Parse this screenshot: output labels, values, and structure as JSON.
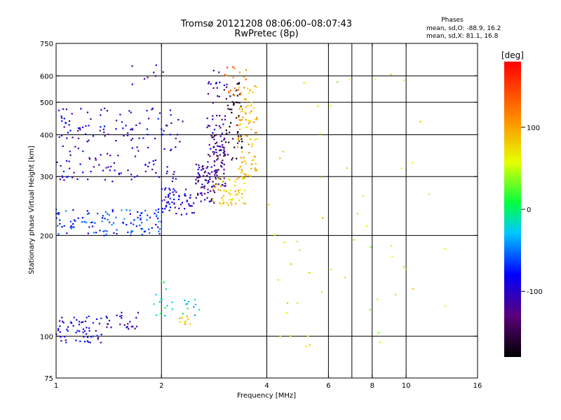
{
  "chart_data": {
    "type": "scatter",
    "title": "Tromsø 20121208 08:06:00–08:07:43",
    "subtitle": "RwPretec (8p)",
    "stats": {
      "heading": "Phases",
      "line_o": "mean, sd,O: -88.9, 16.2",
      "line_x": "mean, sd,X:  81.1, 16.8"
    },
    "xlabel": "Frequency [MHz]",
    "ylabel": "Stationary phase Virtual Height [km]",
    "x_scale": "log",
    "y_scale": "log",
    "xlim": [
      1,
      16
    ],
    "ylim": [
      75,
      750
    ],
    "x_ticks": [
      1,
      2,
      4,
      6,
      8,
      10,
      16
    ],
    "x_tick_labels": [
      "1",
      "2",
      "4",
      "6",
      "8",
      "10",
      "16"
    ],
    "x_gridlines": [
      2,
      4,
      6,
      7,
      8,
      10
    ],
    "y_ticks": [
      75,
      100,
      200,
      300,
      400,
      500,
      600,
      750
    ],
    "y_tick_labels": [
      "75",
      "100",
      "200",
      "300",
      "400",
      "500",
      "600",
      "750"
    ],
    "y_gridlines": [
      100,
      200,
      300,
      400,
      500,
      600
    ],
    "grid": true,
    "colorbar": {
      "label": "[deg]",
      "min": -180,
      "max": 180,
      "ticks": [
        100,
        0,
        -100
      ],
      "tick_labels": [
        "100",
        "0",
        "-100"
      ],
      "colormap": "rainbow"
    },
    "series": [
      {
        "values": [
          {
            "x_range": [
              1.0,
              1.35
            ],
            "h_range": [
              95,
              115
            ],
            "phase": -95,
            "n": 60
          },
          {
            "x_range": [
              1.35,
              1.75
            ],
            "h_range": [
              105,
              118
            ],
            "phase": -105,
            "n": 25
          },
          {
            "x_range": [
              1.9,
              2.2
            ],
            "h_range": [
              115,
              150
            ],
            "phase": -10,
            "n": 15
          },
          {
            "x_range": [
              2.3,
              2.6
            ],
            "h_range": [
              115,
              130
            ],
            "phase": -20,
            "n": 12
          },
          {
            "x_range": [
              2.25,
              2.45
            ],
            "h_range": [
              108,
              115
            ],
            "phase": 90,
            "n": 10
          },
          {
            "x_range": [
              1.0,
              2.0
            ],
            "h_range": [
              200,
              240
            ],
            "phase": -70,
            "n": 120
          },
          {
            "x_range": [
              2.0,
              2.5
            ],
            "h_range": [
              230,
              280
            ],
            "phase": -95,
            "n": 60
          },
          {
            "x_range": [
              2.5,
              2.85
            ],
            "h_range": [
              250,
              330
            ],
            "phase": -110,
            "n": 70
          },
          {
            "x_range": [
              2.8,
              3.05
            ],
            "h_range": [
              280,
              400
            ],
            "phase": -130,
            "n": 60
          },
          {
            "x_range": [
              2.7,
              3.1
            ],
            "h_range": [
              330,
              630
            ],
            "phase": -110,
            "n": 55
          },
          {
            "x_range": [
              3.05,
              3.4
            ],
            "h_range": [
              330,
              580
            ],
            "phase": -165,
            "n": 50
          },
          {
            "x_range": [
              2.8,
              3.5
            ],
            "h_range": [
              245,
              300
            ],
            "phase": 85,
            "n": 60
          },
          {
            "x_range": [
              3.3,
              3.75
            ],
            "h_range": [
              300,
              560
            ],
            "phase": 95,
            "n": 90
          },
          {
            "x_range": [
              3.0,
              3.5
            ],
            "h_range": [
              500,
              640
            ],
            "phase": 125,
            "n": 18
          },
          {
            "x_range": [
              1.0,
              2.2
            ],
            "h_range": [
              290,
              370
            ],
            "phase": -100,
            "n": 80
          },
          {
            "x_range": [
              1.0,
              2.3
            ],
            "h_range": [
              380,
              480
            ],
            "phase": -100,
            "n": 90
          },
          {
            "x_range": [
              1.5,
              2.1
            ],
            "h_range": [
              560,
              650
            ],
            "phase": -110,
            "n": 8
          },
          {
            "x_range": [
              4.0,
              13.0
            ],
            "h_range": [
              85,
              620
            ],
            "phase": 60,
            "n": 55
          }
        ]
      }
    ]
  }
}
